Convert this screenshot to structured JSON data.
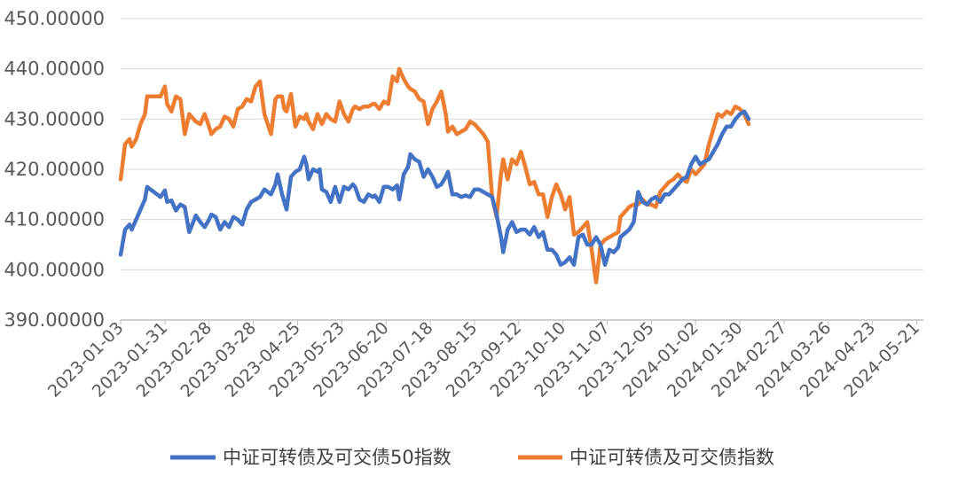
{
  "chart_data": {
    "type": "line",
    "title": "",
    "xlabel": "",
    "ylabel": "",
    "ylim": [
      390,
      450
    ],
    "y_ticks": [
      "390.00000",
      "400.00000",
      "410.00000",
      "420.00000",
      "430.00000",
      "440.00000",
      "450.00000"
    ],
    "x_tick_labels": [
      "2023-01-03",
      "2023-01-31",
      "2023-02-28",
      "2023-03-28",
      "2023-04-25",
      "2023-05-23",
      "2023-06-20",
      "2023-07-18",
      "2023-08-15",
      "2023-09-12",
      "2023-10-10",
      "2023-11-07",
      "2023-12-05",
      "2024-01-02",
      "2024-01-30",
      "2024-02-27",
      "2024-03-26",
      "2024-04-23",
      "2024-05-21"
    ],
    "x_tick_index": [
      0,
      20,
      40,
      60,
      80,
      100,
      120,
      140,
      160,
      180,
      200,
      220,
      240,
      260,
      280,
      300,
      320,
      340,
      360
    ],
    "n_points": 364,
    "legend_position": "bottom",
    "series": [
      {
        "name": "中证可转债及可交债50指数",
        "color": "#4472C4",
        "points": [
          [
            0,
            403.0
          ],
          [
            2,
            408.0
          ],
          [
            4,
            409.0
          ],
          [
            5,
            408.0
          ],
          [
            7,
            410.0
          ],
          [
            9,
            412.0
          ],
          [
            11,
            414.0
          ],
          [
            12,
            416.5
          ],
          [
            15,
            415.5
          ],
          [
            18,
            414.5
          ],
          [
            20,
            415.8
          ],
          [
            21,
            413.5
          ],
          [
            23,
            413.8
          ],
          [
            25,
            411.8
          ],
          [
            27,
            413.0
          ],
          [
            29,
            412.5
          ],
          [
            31,
            407.5
          ],
          [
            34,
            410.8
          ],
          [
            36,
            409.5
          ],
          [
            38,
            408.5
          ],
          [
            40,
            410.0
          ],
          [
            41,
            411.0
          ],
          [
            43,
            410.5
          ],
          [
            45,
            408.0
          ],
          [
            47,
            409.5
          ],
          [
            49,
            408.5
          ],
          [
            51,
            410.5
          ],
          [
            53,
            410.0
          ],
          [
            55,
            409.0
          ],
          [
            57,
            412.0
          ],
          [
            59,
            413.5
          ],
          [
            61,
            414.0
          ],
          [
            63,
            414.5
          ],
          [
            65,
            416.0
          ],
          [
            68,
            415.0
          ],
          [
            70,
            417.0
          ],
          [
            71,
            419.0
          ],
          [
            73,
            415.0
          ],
          [
            74,
            413.5
          ],
          [
            75,
            412.0
          ],
          [
            77,
            418.5
          ],
          [
            79,
            419.5
          ],
          [
            81,
            420.0
          ],
          [
            83,
            422.5
          ],
          [
            84,
            421.0
          ],
          [
            85,
            418.0
          ],
          [
            87,
            420.0
          ],
          [
            89,
            419.5
          ],
          [
            90,
            420.0
          ],
          [
            91,
            416.0
          ],
          [
            93,
            415.5
          ],
          [
            95,
            413.5
          ],
          [
            97,
            416.5
          ],
          [
            99,
            413.5
          ],
          [
            101,
            416.5
          ],
          [
            103,
            416.0
          ],
          [
            105,
            417.0
          ],
          [
            106,
            416.5
          ],
          [
            108,
            414.0
          ],
          [
            110,
            413.5
          ],
          [
            112,
            415.0
          ],
          [
            114,
            414.5
          ],
          [
            115,
            414.8
          ],
          [
            117,
            413.5
          ],
          [
            119,
            416.5
          ],
          [
            121,
            416.5
          ],
          [
            123,
            416.0
          ],
          [
            125,
            416.8
          ],
          [
            126,
            414.0
          ],
          [
            128,
            419.0
          ],
          [
            130,
            420.5
          ],
          [
            131,
            423.0
          ],
          [
            133,
            422.0
          ],
          [
            135,
            421.5
          ],
          [
            137,
            418.5
          ],
          [
            139,
            420.0
          ],
          [
            141,
            418.5
          ],
          [
            143,
            416.5
          ],
          [
            145,
            417.0
          ],
          [
            147,
            418.5
          ],
          [
            148,
            419.5
          ],
          [
            150,
            415.0
          ],
          [
            152,
            415.0
          ],
          [
            154,
            414.5
          ],
          [
            156,
            414.8
          ],
          [
            158,
            414.5
          ],
          [
            160,
            416.0
          ],
          [
            162,
            416.0
          ],
          [
            164,
            415.5
          ],
          [
            166,
            415.0
          ],
          [
            168,
            414.5
          ],
          [
            170,
            411.0
          ],
          [
            172,
            406.5
          ],
          [
            173,
            403.5
          ],
          [
            175,
            408.0
          ],
          [
            177,
            409.5
          ],
          [
            179,
            407.5
          ],
          [
            181,
            408.0
          ],
          [
            183,
            408.0
          ],
          [
            185,
            407.0
          ],
          [
            187,
            408.5
          ],
          [
            189,
            406.5
          ],
          [
            191,
            407.5
          ],
          [
            193,
            404.0
          ],
          [
            195,
            404.0
          ],
          [
            197,
            403.0
          ],
          [
            199,
            401.0
          ],
          [
            201,
            401.5
          ],
          [
            203,
            402.5
          ],
          [
            205,
            401.0
          ],
          [
            207,
            406.5
          ],
          [
            209,
            407.0
          ],
          [
            211,
            405.0
          ],
          [
            213,
            405.0
          ],
          [
            215,
            406.5
          ],
          [
            217,
            405.0
          ],
          [
            219,
            401.0
          ],
          [
            221,
            404.0
          ],
          [
            223,
            403.5
          ],
          [
            225,
            404.5
          ],
          [
            226,
            406.5
          ],
          [
            230,
            408.0
          ],
          [
            232,
            409.5
          ],
          [
            234,
            415.5
          ],
          [
            236,
            413.5
          ],
          [
            238,
            413.0
          ],
          [
            240,
            414.0
          ],
          [
            242,
            414.5
          ],
          [
            244,
            413.5
          ],
          [
            246,
            415.0
          ],
          [
            248,
            415.0
          ],
          [
            250,
            416.0
          ],
          [
            252,
            417.0
          ],
          [
            254,
            418.0
          ],
          [
            256,
            418.5
          ],
          [
            258,
            421.0
          ],
          [
            260,
            422.5
          ],
          [
            262,
            421.0
          ],
          [
            264,
            421.5
          ],
          [
            266,
            422.0
          ],
          [
            268,
            423.5
          ],
          [
            270,
            425.0
          ],
          [
            272,
            427.0
          ],
          [
            274,
            428.5
          ],
          [
            276,
            428.5
          ],
          [
            278,
            430.0
          ],
          [
            280,
            431.0
          ],
          [
            282,
            431.5
          ],
          [
            284,
            430.0
          ]
        ]
      },
      {
        "name": "中证可转债及可交债指数",
        "color": "#ED7D31",
        "points": [
          [
            0,
            418.0
          ],
          [
            2,
            425.0
          ],
          [
            4,
            426.0
          ],
          [
            5,
            424.5
          ],
          [
            7,
            426.0
          ],
          [
            9,
            429.0
          ],
          [
            11,
            431.0
          ],
          [
            12,
            434.5
          ],
          [
            15,
            434.5
          ],
          [
            18,
            434.5
          ],
          [
            20,
            436.5
          ],
          [
            21,
            433.0
          ],
          [
            23,
            431.5
          ],
          [
            25,
            434.5
          ],
          [
            27,
            434.0
          ],
          [
            29,
            427.0
          ],
          [
            31,
            431.0
          ],
          [
            34,
            429.5
          ],
          [
            36,
            429.0
          ],
          [
            38,
            431.0
          ],
          [
            40,
            428.5
          ],
          [
            41,
            427.0
          ],
          [
            43,
            428.0
          ],
          [
            45,
            428.5
          ],
          [
            47,
            430.5
          ],
          [
            49,
            430.0
          ],
          [
            51,
            428.5
          ],
          [
            53,
            432.0
          ],
          [
            55,
            432.5
          ],
          [
            57,
            434.0
          ],
          [
            59,
            433.5
          ],
          [
            61,
            436.5
          ],
          [
            63,
            437.5
          ],
          [
            65,
            431.0
          ],
          [
            68,
            427.0
          ],
          [
            70,
            434.0
          ],
          [
            71,
            434.5
          ],
          [
            73,
            434.5
          ],
          [
            74,
            432.0
          ],
          [
            75,
            431.5
          ],
          [
            77,
            435.0
          ],
          [
            79,
            428.5
          ],
          [
            81,
            430.5
          ],
          [
            83,
            430.0
          ],
          [
            84,
            431.0
          ],
          [
            85,
            429.5
          ],
          [
            87,
            428.0
          ],
          [
            89,
            431.0
          ],
          [
            90,
            430.0
          ],
          [
            91,
            429.0
          ],
          [
            93,
            431.0
          ],
          [
            95,
            430.0
          ],
          [
            97,
            429.5
          ],
          [
            99,
            433.5
          ],
          [
            101,
            431.0
          ],
          [
            103,
            429.5
          ],
          [
            105,
            432.0
          ],
          [
            106,
            432.5
          ],
          [
            108,
            432.0
          ],
          [
            110,
            432.5
          ],
          [
            112,
            432.5
          ],
          [
            114,
            433.0
          ],
          [
            115,
            433.0
          ],
          [
            117,
            432.0
          ],
          [
            119,
            433.5
          ],
          [
            121,
            433.0
          ],
          [
            123,
            438.5
          ],
          [
            125,
            437.5
          ],
          [
            126,
            440.0
          ],
          [
            128,
            438.0
          ],
          [
            130,
            436.5
          ],
          [
            131,
            436.0
          ],
          [
            133,
            435.5
          ],
          [
            135,
            434.0
          ],
          [
            137,
            433.5
          ],
          [
            139,
            429.0
          ],
          [
            141,
            432.0
          ],
          [
            143,
            433.5
          ],
          [
            145,
            435.5
          ],
          [
            147,
            431.0
          ],
          [
            148,
            427.5
          ],
          [
            150,
            428.5
          ],
          [
            152,
            427.0
          ],
          [
            154,
            427.5
          ],
          [
            156,
            428.0
          ],
          [
            158,
            429.5
          ],
          [
            160,
            429.0
          ],
          [
            162,
            428.0
          ],
          [
            164,
            427.0
          ],
          [
            166,
            425.5
          ],
          [
            168,
            414.5
          ],
          [
            170,
            410.5
          ],
          [
            172,
            419.0
          ],
          [
            173,
            422.0
          ],
          [
            175,
            418.0
          ],
          [
            177,
            422.0
          ],
          [
            179,
            421.0
          ],
          [
            181,
            423.5
          ],
          [
            183,
            420.5
          ],
          [
            185,
            417.0
          ],
          [
            187,
            417.5
          ],
          [
            189,
            415.0
          ],
          [
            191,
            415.0
          ],
          [
            193,
            410.5
          ],
          [
            195,
            414.5
          ],
          [
            197,
            417.0
          ],
          [
            199,
            415.0
          ],
          [
            201,
            412.0
          ],
          [
            203,
            414.5
          ],
          [
            205,
            407.0
          ],
          [
            207,
            407.5
          ],
          [
            209,
            408.5
          ],
          [
            211,
            409.5
          ],
          [
            213,
            404.0
          ],
          [
            215,
            397.5
          ],
          [
            217,
            405.0
          ],
          [
            219,
            406.0
          ],
          [
            221,
            406.5
          ],
          [
            223,
            407.0
          ],
          [
            225,
            407.5
          ],
          [
            226,
            410.5
          ],
          [
            230,
            412.5
          ],
          [
            232,
            413.0
          ],
          [
            234,
            413.0
          ],
          [
            236,
            414.0
          ],
          [
            238,
            413.0
          ],
          [
            240,
            413.0
          ],
          [
            242,
            412.5
          ],
          [
            244,
            415.5
          ],
          [
            246,
            416.5
          ],
          [
            248,
            417.5
          ],
          [
            250,
            418.0
          ],
          [
            252,
            419.0
          ],
          [
            254,
            418.0
          ],
          [
            256,
            417.5
          ],
          [
            258,
            420.0
          ],
          [
            260,
            419.0
          ],
          [
            262,
            420.0
          ],
          [
            264,
            421.0
          ],
          [
            266,
            425.0
          ],
          [
            268,
            428.0
          ],
          [
            270,
            431.0
          ],
          [
            272,
            430.5
          ],
          [
            274,
            431.5
          ],
          [
            276,
            431.0
          ],
          [
            278,
            432.5
          ],
          [
            280,
            432.0
          ],
          [
            282,
            431.0
          ],
          [
            284,
            429.0
          ]
        ]
      }
    ]
  }
}
